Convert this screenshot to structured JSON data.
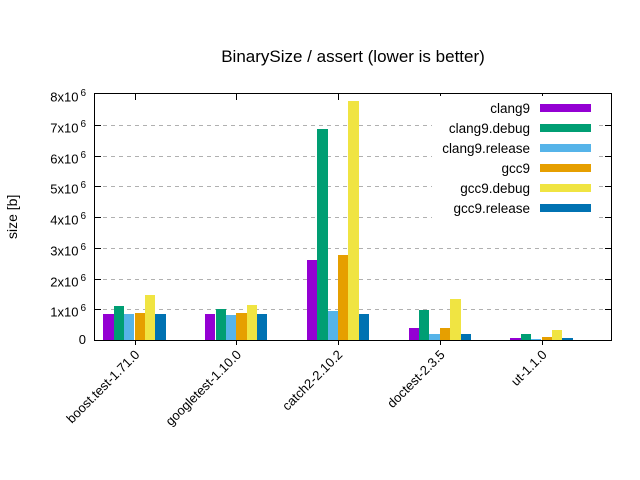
{
  "page": {
    "background": "#ffffff",
    "axis_color": "#000000",
    "grid_color": "#b0b0b0"
  },
  "chart_data": {
    "type": "bar",
    "title": "BinarySize / assert (lower is better)",
    "xlabel": "",
    "ylabel": "size [b]",
    "ylim": [
      0,
      8000000
    ],
    "ytick_step": 1000000,
    "ytick_labels": [
      "0",
      "1x10^6",
      "2x10^6",
      "3x10^6",
      "4x10^6",
      "5x10^6",
      "6x10^6",
      "7x10^6",
      "8x10^6"
    ],
    "grid": true,
    "grid_style": "dashed",
    "legend_position": "top-right-inside",
    "categories": [
      "boost.test-1.71.0",
      "googletest-1.10.0",
      "catch2-2.10.2",
      "doctest-2.3.5",
      "ut-1.1.0"
    ],
    "series": [
      {
        "name": "clang9",
        "color": "#9400d3",
        "values": [
          860000,
          850000,
          2600000,
          380000,
          80000
        ]
      },
      {
        "name": "clang9.debug",
        "color": "#009e73",
        "values": [
          1110000,
          1000000,
          6860000,
          980000,
          210000
        ]
      },
      {
        "name": "clang9.release",
        "color": "#56b4e9",
        "values": [
          840000,
          810000,
          930000,
          200000,
          30000
        ]
      },
      {
        "name": "gcc9",
        "color": "#e69f00",
        "values": [
          880000,
          870000,
          2780000,
          380000,
          100000
        ]
      },
      {
        "name": "gcc9.debug",
        "color": "#f0e442",
        "values": [
          1460000,
          1150000,
          7780000,
          1320000,
          310000
        ]
      },
      {
        "name": "gcc9.release",
        "color": "#0072b2",
        "values": [
          840000,
          840000,
          860000,
          190000,
          50000
        ]
      }
    ]
  }
}
